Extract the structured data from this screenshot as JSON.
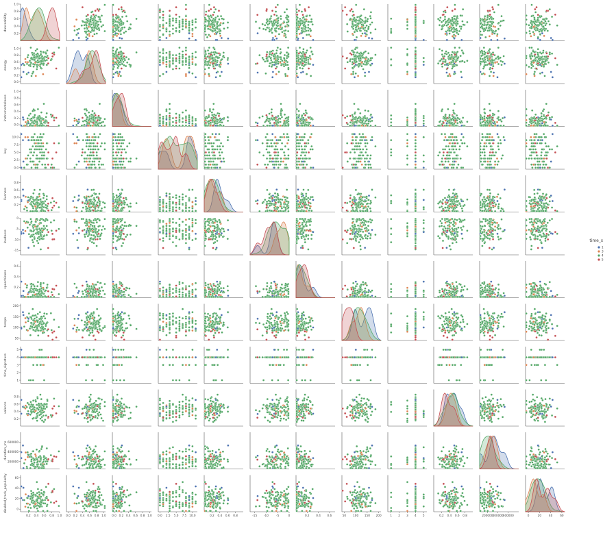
{
  "chart_data": {
    "type": "pairplot",
    "hue": {
      "name": "time_s",
      "levels": [
        "1",
        "3",
        "4",
        "5"
      ]
    },
    "colors": {
      "blue": "#4c72b0",
      "orange": "#dd8452",
      "green": "#55a868",
      "red": "#c44e52"
    },
    "series_colors": [
      "#4c72b0",
      "#dd8452",
      "#55a868",
      "#c44e52"
    ],
    "variables": [
      {
        "name": "danceability",
        "ticks": [
          "0.2",
          "0.4",
          "0.6",
          "0.8",
          "1.0"
        ],
        "range": [
          0.0,
          1.0
        ],
        "tickvals": [
          0.2,
          0.4,
          0.6,
          0.8,
          1.0
        ],
        "cats": [
          0.0,
          0.25,
          0.45,
          0.8
        ]
      },
      {
        "name": "energy",
        "ticks": [
          "0.0",
          "0.2",
          "0.4",
          "0.6",
          "0.8",
          "1.0"
        ],
        "range": [
          -0.05,
          1.05
        ],
        "tickvals": [
          0.0,
          0.2,
          0.4,
          0.6,
          0.8,
          1.0
        ],
        "cats": [
          0.3,
          0.55,
          0.68,
          0.72
        ]
      },
      {
        "name": "instrumentalness",
        "ticks": [
          "0.0",
          "0.2",
          "0.4",
          "0.6",
          "0.8",
          "1.0"
        ],
        "range": [
          -0.05,
          1.05
        ],
        "tickvals": [
          0.0,
          0.2,
          0.4,
          0.6,
          0.8,
          1.0
        ],
        "cats": [
          0.1,
          0.05,
          0.1,
          0.15
        ]
      },
      {
        "name": "key",
        "ticks": [
          "0.0",
          "2.5",
          "5.0",
          "7.5",
          "10.0"
        ],
        "range": [
          -0.5,
          11.5
        ],
        "tickvals": [
          0.0,
          2.5,
          5.0,
          7.5,
          10.0
        ],
        "cats": [
          5.0,
          5.5,
          5.0,
          6.0
        ]
      },
      {
        "name": "liveness",
        "ticks": [
          "0.2",
          "0.4",
          "0.6",
          "0.8"
        ],
        "range": [
          0.0,
          1.0
        ],
        "tickvals": [
          0.2,
          0.4,
          0.6,
          0.8
        ],
        "cats": [
          0.3,
          0.25,
          0.22,
          0.2
        ]
      },
      {
        "name": "loudness",
        "ticks": [
          "-15",
          "-10",
          "-5",
          "0"
        ],
        "range": [
          -17,
          0
        ],
        "tickvals": [
          -15,
          -10,
          -5,
          0
        ],
        "cats": [
          -8,
          -6,
          -5,
          -9
        ]
      },
      {
        "name": "speechiness",
        "ticks": [
          "0.2",
          "0.4",
          "0.6"
        ],
        "range": [
          0.0,
          0.7
        ],
        "tickvals": [
          0.2,
          0.4,
          0.6
        ],
        "cats": [
          0.1,
          0.08,
          0.09,
          0.06
        ]
      },
      {
        "name": "tempo",
        "ticks": [
          "50",
          "100",
          "150",
          "200"
        ],
        "range": [
          40,
          210
        ],
        "tickvals": [
          50,
          100,
          150,
          200
        ],
        "cats": [
          110,
          120,
          118,
          90
        ]
      },
      {
        "name": "time_signature",
        "ticks": [
          "1",
          "2",
          "3",
          "4",
          "5"
        ],
        "range": [
          0.6,
          5.4
        ],
        "tickvals": [
          1,
          2,
          3,
          4,
          5
        ],
        "cats": [
          1,
          3,
          4,
          5
        ]
      },
      {
        "name": "valence",
        "ticks": [
          "0.2",
          "0.4",
          "0.6",
          "0.8"
        ],
        "range": [
          0.0,
          1.0
        ],
        "tickvals": [
          0.2,
          0.4,
          0.6,
          0.8
        ],
        "cats": [
          0.45,
          0.4,
          0.45,
          0.35
        ]
      },
      {
        "name": "duration_ms",
        "ticks": [
          "200000",
          "400000",
          "600000"
        ],
        "range": [
          50000,
          800000
        ],
        "tickvals": [
          200000,
          400000,
          600000
        ],
        "cats": [
          240000,
          230000,
          235000,
          260000
        ]
      },
      {
        "name": "disabled_track_popularity",
        "ticks": [
          "0",
          "20",
          "40",
          "60"
        ],
        "range": [
          -5,
          65
        ],
        "tickvals": [
          0,
          20,
          40,
          60
        ],
        "cats": [
          20,
          18,
          15,
          25
        ]
      }
    ]
  }
}
